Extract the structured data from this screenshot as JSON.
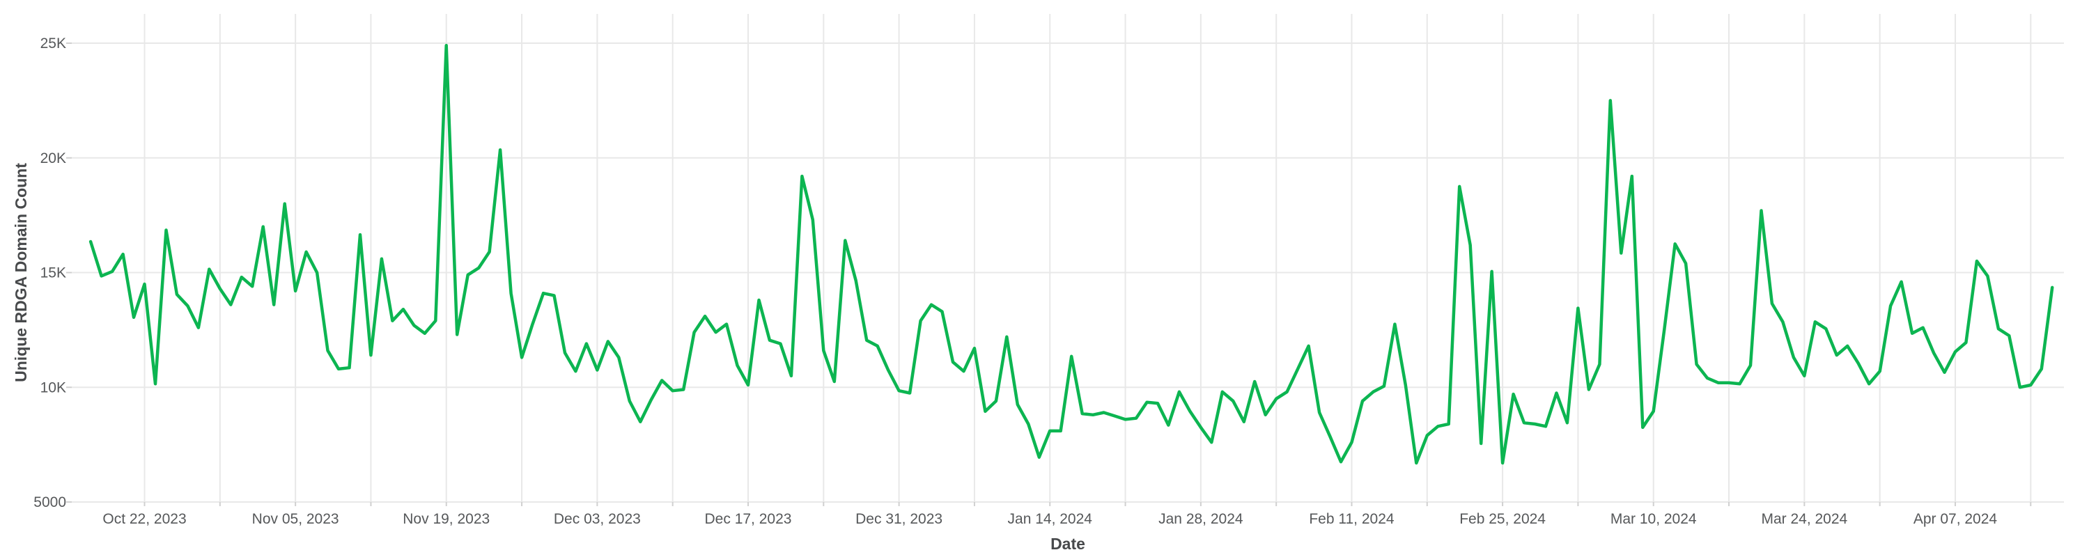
{
  "chart_data": {
    "type": "line",
    "title": "",
    "xlabel": "Date",
    "ylabel": "Unique RDGA Domain Count",
    "x_unit": "day",
    "x_start": "2023-10-17",
    "x_interval_days": 1,
    "legend": [],
    "grid": true,
    "ylim": [
      5000,
      25000
    ],
    "y_ticks": [
      {
        "label": "25K",
        "value": 25000
      },
      {
        "label": "20K",
        "value": 20000
      },
      {
        "label": "15K",
        "value": 15000
      },
      {
        "label": "10K",
        "value": 10000
      },
      {
        "label": "5000",
        "value": 5000
      }
    ],
    "x_ticks": [
      {
        "label": "Oct 22, 2023",
        "day": 5
      },
      {
        "label": "Nov 05, 2023",
        "day": 19
      },
      {
        "label": "Nov 19, 2023",
        "day": 33
      },
      {
        "label": "Dec 03, 2023",
        "day": 47
      },
      {
        "label": "Dec 17, 2023",
        "day": 61
      },
      {
        "label": "Dec 31, 2023",
        "day": 75
      },
      {
        "label": "Jan 14, 2024",
        "day": 89
      },
      {
        "label": "Jan 28, 2024",
        "day": 103
      },
      {
        "label": "Feb 11, 2024",
        "day": 117
      },
      {
        "label": "Feb 25, 2024",
        "day": 131
      },
      {
        "label": "Mar 10, 2024",
        "day": 145
      },
      {
        "label": "Mar 24, 2024",
        "day": 159
      },
      {
        "label": "Apr 07, 2024",
        "day": 173
      }
    ],
    "minor_grid_every_days": 7,
    "minor_grid_first_day": 5,
    "minor_grid_last_day": 180,
    "series": [
      {
        "name": "Unique RDGA Domain Count",
        "values": [
          16350,
          14850,
          15050,
          15800,
          13050,
          14500,
          10150,
          16850,
          14050,
          13550,
          12600,
          15150,
          14300,
          13600,
          14800,
          14400,
          17000,
          13600,
          18000,
          14200,
          15900,
          15000,
          11600,
          10800,
          10850,
          16650,
          11400,
          15600,
          12900,
          13400,
          12700,
          12350,
          12900,
          24900,
          12300,
          14900,
          15200,
          15900,
          20350,
          14100,
          11300,
          12750,
          14100,
          14000,
          11500,
          10700,
          11900,
          10750,
          12000,
          11300,
          9400,
          8500,
          9450,
          10300,
          9850,
          9900,
          12400,
          13100,
          12400,
          12750,
          10950,
          10100,
          13800,
          12050,
          11900,
          10500,
          19200,
          17300,
          11600,
          10250,
          16400,
          14650,
          12050,
          11800,
          10750,
          9850,
          9750,
          12900,
          13600,
          13300,
          11100,
          10700,
          11700,
          8950,
          9400,
          12200,
          9250,
          8400,
          6950,
          8100,
          8100,
          11350,
          8850,
          8800,
          8900,
          8750,
          8600,
          8650,
          9350,
          9300,
          8350,
          9800,
          8950,
          8250,
          7600,
          9800,
          9400,
          8500,
          10250,
          8800,
          9500,
          9800,
          10800,
          11800,
          8900,
          7850,
          6750,
          7600,
          9400,
          9800,
          10050,
          12750,
          10100,
          6700,
          7900,
          8300,
          8400,
          18750,
          16200,
          7550,
          15050,
          6700,
          9700,
          8450,
          8400,
          8300,
          9750,
          8450,
          13450,
          9900,
          11000,
          22500,
          15850,
          19200,
          8250,
          8950,
          12500,
          16250,
          15400,
          11000,
          10400,
          10200,
          10200,
          10150,
          10950,
          17700,
          13650,
          12850,
          11300,
          10500,
          12850,
          12550,
          11400,
          11800,
          11050,
          10150,
          10700,
          13550,
          14600,
          12350,
          12600,
          11500,
          10650,
          11550,
          11950,
          15500,
          14850,
          12550,
          12250,
          10000,
          10100,
          10800,
          14350
        ]
      }
    ],
    "colors": {
      "line": "#0CB551",
      "grid": "#E8E8E8",
      "tick_mark": "#D0D0D0",
      "tick_text": "#56585A",
      "axis_title_text": "#47494B",
      "background": "#FFFFFF"
    }
  }
}
